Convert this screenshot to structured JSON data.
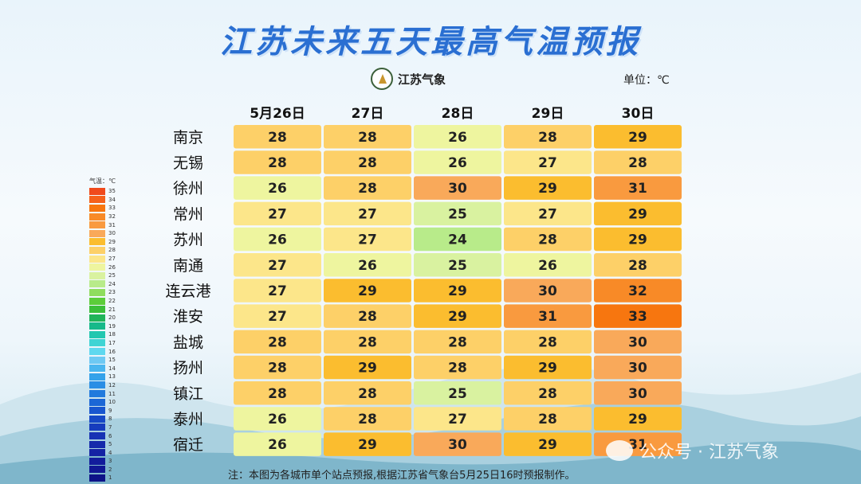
{
  "title": "江苏未来五天最高气温预报",
  "logo_text": "江苏气象",
  "unit_label": "单位：℃",
  "note": "注：本图为各城市单个站点预报,根据江苏省气象台5月25日16时预报制作。",
  "watermark": "公众号 · 江苏气象",
  "legend": {
    "title": "气温：℃",
    "ticks": [
      "35",
      "34",
      "33",
      "32",
      "31",
      "30",
      "29",
      "28",
      "27",
      "26",
      "25",
      "24",
      "23",
      "22",
      "21",
      "20",
      "19",
      "18",
      "17",
      "16",
      "15",
      "14",
      "13",
      "12",
      "11",
      "10",
      "9",
      "8",
      "7",
      "6",
      "5",
      "4",
      "3",
      "2",
      "1"
    ]
  },
  "chart_data": {
    "type": "heatmap",
    "columns": [
      "5月26日",
      "27日",
      "28日",
      "29日",
      "30日"
    ],
    "rows": [
      "南京",
      "无锡",
      "徐州",
      "常州",
      "苏州",
      "南通",
      "连云港",
      "淮安",
      "盐城",
      "扬州",
      "镇江",
      "泰州",
      "宿迁"
    ],
    "values": [
      [
        28,
        28,
        26,
        28,
        29
      ],
      [
        28,
        28,
        26,
        27,
        28
      ],
      [
        26,
        28,
        30,
        29,
        31
      ],
      [
        27,
        27,
        25,
        27,
        29
      ],
      [
        26,
        27,
        24,
        28,
        29
      ],
      [
        27,
        26,
        25,
        26,
        28
      ],
      [
        27,
        29,
        29,
        30,
        32
      ],
      [
        27,
        28,
        29,
        31,
        33
      ],
      [
        28,
        28,
        28,
        28,
        30
      ],
      [
        28,
        29,
        28,
        29,
        30
      ],
      [
        28,
        28,
        25,
        28,
        30
      ],
      [
        26,
        28,
        27,
        28,
        29
      ],
      [
        26,
        29,
        30,
        29,
        31
      ]
    ],
    "colorscale": {
      "24": "#b8eb8a",
      "25": "#d9f2a0",
      "26": "#eef59f",
      "27": "#fce68a",
      "28": "#fdd068",
      "29": "#fbbd2f",
      "30": "#f9a95a",
      "31": "#f99a3f",
      "32": "#f88a27",
      "33": "#f7760f"
    }
  }
}
